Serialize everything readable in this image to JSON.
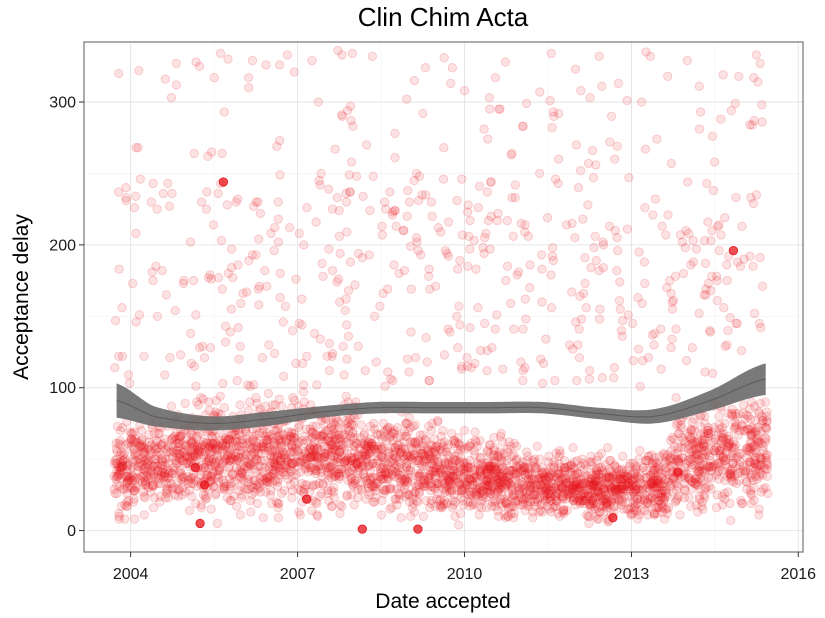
{
  "chart_data": {
    "type": "scatter",
    "title": "Clin Chim Acta",
    "xlabel": "Date accepted",
    "ylabel": "Acceptance delay",
    "x_scale": "date",
    "xlim": [
      "2003-03-01",
      "2016-02-01"
    ],
    "ylim": [
      -15,
      342
    ],
    "x_ticks": [
      "2004",
      "2007",
      "2010",
      "2013",
      "2016"
    ],
    "y_ticks": [
      "0",
      "100",
      "200",
      "300"
    ],
    "grid": true,
    "legend": "none",
    "point_color": "#e8141c",
    "point_alpha": 0.12,
    "smooth_color": "#6e6e6e",
    "smooth": {
      "x": [
        "2003-10-01",
        "2004-06-01",
        "2005-06-01",
        "2006-06-01",
        "2007-06-01",
        "2008-06-01",
        "2009-06-01",
        "2010-06-01",
        "2011-06-01",
        "2012-06-01",
        "2013-06-01",
        "2014-06-01",
        "2015-06-01"
      ],
      "y": [
        91,
        80,
        75,
        78,
        83,
        86,
        86,
        86,
        86,
        82,
        80,
        91,
        106
      ],
      "band_halfwidth": [
        12,
        7,
        5,
        5,
        4,
        4,
        4,
        4,
        4,
        4,
        5,
        7,
        11
      ]
    },
    "highlighted_points": [
      {
        "x": "2005-04-01",
        "y": 5
      },
      {
        "x": "2008-03-01",
        "y": 1
      },
      {
        "x": "2009-03-01",
        "y": 1
      },
      {
        "x": "2012-09-01",
        "y": 9
      },
      {
        "x": "2013-11-01",
        "y": 41
      },
      {
        "x": "2005-03-01",
        "y": 44
      },
      {
        "x": "2005-05-01",
        "y": 32
      },
      {
        "x": "2007-03-01",
        "y": 22
      },
      {
        "x": "2014-11-01",
        "y": 196
      },
      {
        "x": "2005-09-01",
        "y": 244
      }
    ],
    "n_points": 3800,
    "points_x_range": [
      "2003-09-15",
      "2015-06-15"
    ],
    "points_y_range": [
      0,
      340
    ]
  }
}
